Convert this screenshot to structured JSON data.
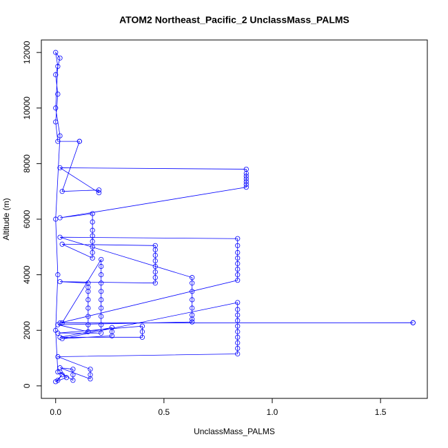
{
  "chart_data": {
    "type": "line",
    "title": "ATOM2 Northeast_Pacific_2 UnclassMass_PALMS",
    "x_label": "UnclassMass_PALMS",
    "y_label": "Altitude (m)",
    "color": "#0000ff",
    "markers": true,
    "x": [
      0.01,
      0.03,
      0,
      0.05,
      0.02,
      0.08,
      0.08,
      0.08,
      0.02,
      0.16,
      0.16,
      0.16,
      0.01,
      0.84,
      0.84,
      0.84,
      0.84,
      0.84,
      0.84,
      0.84,
      0.84,
      0.84,
      0.84,
      0.03,
      0.26,
      0.26,
      0.26,
      0.02,
      0.4,
      0.4,
      0.4,
      0.01,
      0.21,
      0.21,
      0.21,
      0.21,
      0.21,
      0.21,
      0.21,
      0.21,
      0.21,
      0.21,
      0.03,
      1.65,
      1.65,
      0.02,
      0.84,
      0.84,
      0.84,
      0.84,
      0.84,
      0.84,
      0.84,
      0.84,
      0.02,
      0.63,
      0.63,
      0.63,
      0.63,
      0.63,
      0.63,
      0.63,
      0.63,
      0.01,
      0.15,
      0.15,
      0.15,
      0.15,
      0.15,
      0.15,
      0.15,
      0.15,
      0.02,
      0.46,
      0.46,
      0.46,
      0.46,
      0.46,
      0.46,
      0.46,
      0.46,
      0.03,
      0.17,
      0.17,
      0.17,
      0.17,
      0.17,
      0.17,
      0.17,
      0.17,
      0.02,
      0.88,
      0.88,
      0.88,
      0.88,
      0.88,
      0.88,
      0.88,
      0.02,
      0.2,
      0.2,
      0.03,
      0.11,
      0.11,
      0.01,
      0,
      0.01,
      0,
      0.02,
      0,
      0.01,
      0,
      0.02,
      0,
      0.01,
      0,
      0.01
    ],
    "values": [
      200,
      400,
      150,
      300,
      500,
      200,
      400,
      600,
      650,
      250,
      400,
      600,
      1050,
      1150,
      1350,
      1550,
      1750,
      1950,
      2150,
      2350,
      2550,
      2750,
      3000,
      1700,
      1800,
      1950,
      2100,
      1750,
      1750,
      1950,
      2150,
      1900,
      1900,
      2200,
      2500,
      2800,
      3100,
      3400,
      3700,
      4000,
      4300,
      4550,
      2270,
      2270,
      2275,
      2265,
      3800,
      4000,
      4200,
      4400,
      4600,
      4800,
      5050,
      5300,
      5350,
      3900,
      3700,
      3400,
      3100,
      2800,
      2550,
      2400,
      2300,
      2200,
      1950,
      2200,
      2500,
      2800,
      3100,
      3400,
      3550,
      3700,
      3750,
      3700,
      3900,
      4100,
      4300,
      4500,
      4700,
      4900,
      5050,
      5100,
      4600,
      4800,
      5000,
      5200,
      5400,
      5600,
      5900,
      6200,
      6050,
      7150,
      7250,
      7350,
      7450,
      7550,
      7650,
      7800,
      7850,
      6950,
      7050,
      7000,
      8800,
      8800,
      8800,
      9500,
      10500,
      11200,
      11800,
      12000,
      11500,
      10000,
      9000,
      6000,
      4000,
      2000,
      500
    ],
    "xlim": [
      -0.066,
      1.716
    ],
    "ylim": [
      -450,
      12450
    ],
    "xticks": [
      {
        "value": 0,
        "label": "0.0"
      },
      {
        "value": 0.5,
        "label": "0.5"
      },
      {
        "value": 1,
        "label": "1.0"
      },
      {
        "value": 1.5,
        "label": "1.5"
      }
    ],
    "yticks": [
      0,
      2000,
      4000,
      6000,
      8000,
      10000,
      12000
    ]
  }
}
